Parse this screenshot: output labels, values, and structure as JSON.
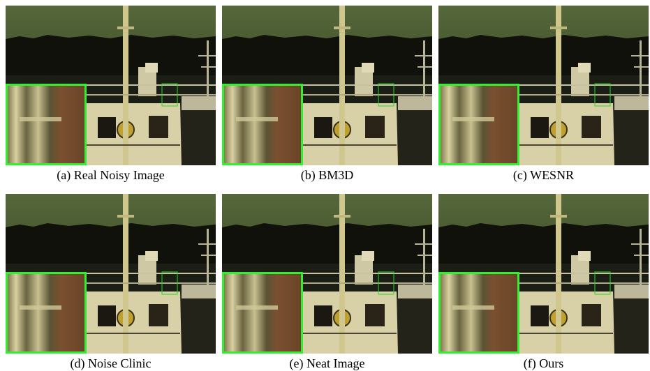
{
  "figure": {
    "panels": [
      {
        "caption": "(a) Real Noisy Image"
      },
      {
        "caption": "(b) BM3D"
      },
      {
        "caption": "(c) WESNR"
      },
      {
        "caption": "(d) Noise Clinic"
      },
      {
        "caption": "(e) Neat Image"
      },
      {
        "caption": "(f) Ours"
      }
    ]
  }
}
